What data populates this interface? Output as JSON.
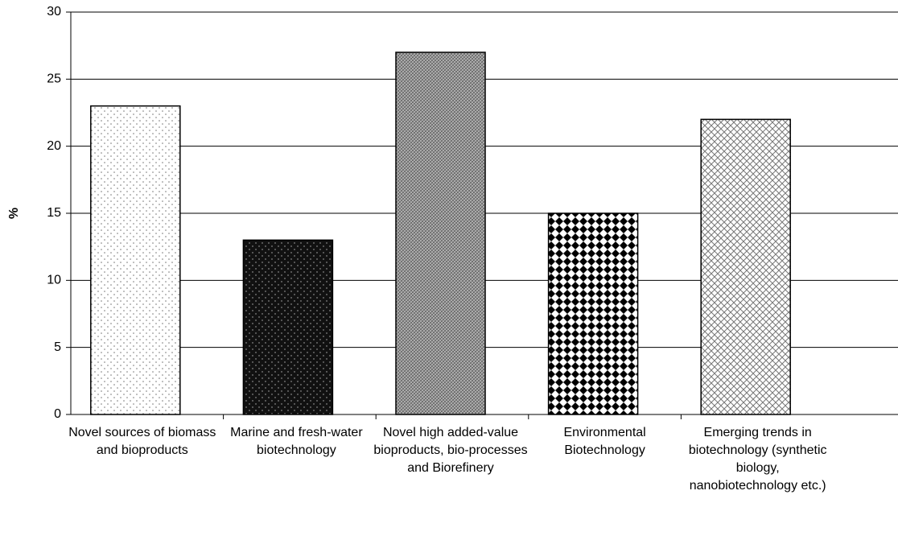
{
  "chart_data": {
    "type": "bar",
    "y_label": "%",
    "categories": [
      "Novel sources of biomass and bioproducts",
      "Marine and fresh-water biotechnology",
      "Novel high added-value bioproducts, bio-processes and Biorefinery",
      "Environmental Biotechnology",
      "Emerging trends in biotechnology (synthetic biology, nanobiotechnology etc.)"
    ],
    "values": [
      23,
      13,
      27,
      15,
      22
    ],
    "ylim": [
      0,
      30
    ],
    "yticks": [
      0,
      5,
      10,
      15,
      20,
      25,
      30
    ],
    "grid": true
  }
}
